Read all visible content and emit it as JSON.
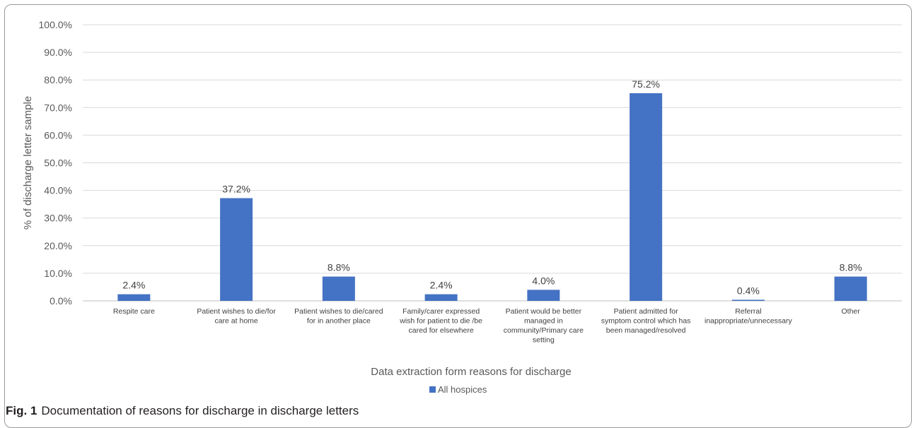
{
  "chart_data": {
    "type": "bar",
    "categories": [
      "Respite care",
      "Patient wishes to die/for care at home",
      "Patient wishes to die/cared for in another place",
      "Family/carer expressed wish for patient to die /be cared for elsewhere",
      "Patient would be better managed in community/Primary care setting",
      "Patient admitted for symptom control which has been managed/resolved",
      "Referral inappropriate/unnecessary",
      "Other"
    ],
    "category_lines": [
      [
        "Respite care"
      ],
      [
        "Patient wishes to die/for",
        "care at home"
      ],
      [
        "Patient wishes to die/cared",
        "for in another place"
      ],
      [
        "Family/carer expressed",
        "wish for patient to die /be",
        "cared for elsewhere"
      ],
      [
        "Patient would be better",
        "managed in",
        "community/Primary care",
        "setting"
      ],
      [
        "Patient admitted for",
        "symptom control which has",
        "been managed/resolved"
      ],
      [
        "Referral",
        "inappropriate/unnecessary"
      ],
      [
        "Other"
      ]
    ],
    "series": [
      {
        "name": "All hospices",
        "values": [
          2.4,
          37.2,
          8.8,
          2.4,
          4.0,
          75.2,
          0.4,
          8.8
        ],
        "color": "#4472C4"
      }
    ],
    "data_labels": [
      "2.4%",
      "37.2%",
      "8.8%",
      "2.4%",
      "4.0%",
      "75.2%",
      "0.4%",
      "8.8%"
    ],
    "yticks": [
      "0.0%",
      "10.0%",
      "20.0%",
      "30.0%",
      "40.0%",
      "50.0%",
      "60.0%",
      "70.0%",
      "80.0%",
      "90.0%",
      "100.0%"
    ],
    "ylim": [
      0,
      100
    ],
    "xlabel": "Data extraction form reasons for discharge",
    "ylabel": "% of discharge letter sample",
    "grid": true,
    "legend": "bottom"
  },
  "caption": {
    "label": "Fig. 1",
    "text": "Documentation of reasons for discharge in discharge letters"
  }
}
